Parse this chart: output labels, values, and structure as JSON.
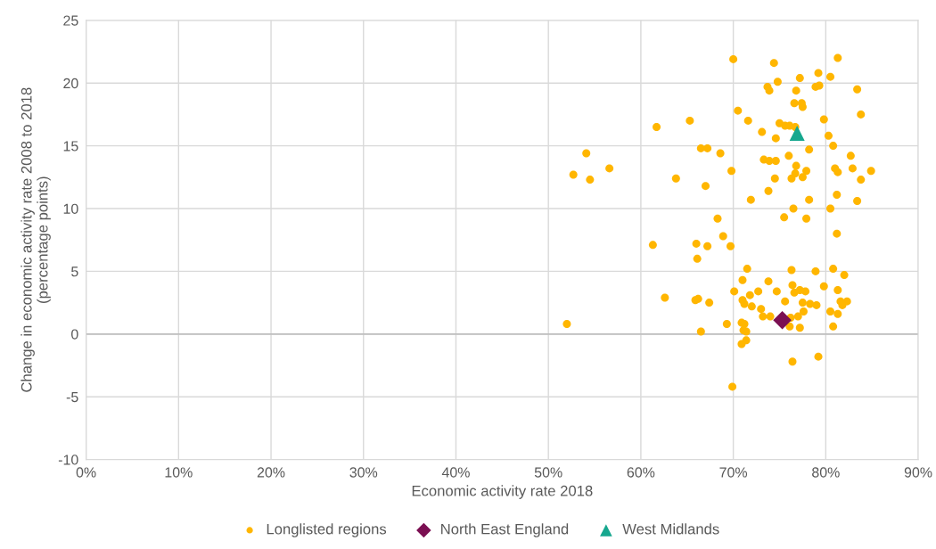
{
  "chart_data": {
    "type": "scatter",
    "xlabel": "Economic activity rate 2018",
    "ylabel": "Change in economic activity rate 2008 to 2018\n(percentage points)",
    "xlim": [
      0,
      90
    ],
    "xticks": [
      {
        "value": 0,
        "label": "0%"
      },
      {
        "value": 10,
        "label": "10%"
      },
      {
        "value": 20,
        "label": "20%"
      },
      {
        "value": 30,
        "label": "30%"
      },
      {
        "value": 40,
        "label": "40%"
      },
      {
        "value": 50,
        "label": "50%"
      },
      {
        "value": 60,
        "label": "60%"
      },
      {
        "value": 70,
        "label": "70%"
      },
      {
        "value": 80,
        "label": "80%"
      },
      {
        "value": 90,
        "label": "90%"
      }
    ],
    "ylim": [
      -10,
      25
    ],
    "yticks": [
      -10,
      -5,
      0,
      5,
      10,
      15,
      20,
      25
    ],
    "grid": true,
    "legend": "bottom",
    "ref_lines": [
      {
        "axis": "y",
        "value": 0,
        "color": "#bfbfbf"
      }
    ],
    "series": [
      {
        "name": "Longlisted regions",
        "color": "#ffb600",
        "marker": "circle",
        "x": [
          70.0,
          74.4,
          81.3,
          77.2,
          79.2,
          80.5,
          74.8,
          78.9,
          79.3,
          73.7,
          73.9,
          76.8,
          83.4,
          76.6,
          77.4,
          77.5,
          70.5,
          71.6,
          65.3,
          75.0,
          76.1,
          79.8,
          83.8,
          61.7,
          73.1,
          75.6,
          74.6,
          76.7,
          80.3,
          80.8,
          54.1,
          66.5,
          67.2,
          68.6,
          76.0,
          78.2,
          73.3,
          73.9,
          74.6,
          76.8,
          76.7,
          77.5,
          77.9,
          81.0,
          81.3,
          82.7,
          82.9,
          84.9,
          83.8,
          52.7,
          54.5,
          56.6,
          69.8,
          76.3,
          63.8,
          67.0,
          73.8,
          74.5,
          71.9,
          78.2,
          81.2,
          76.5,
          80.5,
          83.4,
          75.5,
          77.9,
          68.3,
          68.9,
          61.3,
          66.0,
          67.2,
          69.7,
          81.2,
          66.1,
          71.5,
          76.3,
          78.9,
          80.8,
          82.0,
          71.0,
          73.8,
          76.4,
          77.2,
          77.8,
          79.8,
          81.3,
          70.1,
          72.7,
          74.7,
          71.8,
          71.0,
          71.2,
          72.0,
          73.0,
          75.6,
          76.6,
          77.5,
          78.3,
          79.0,
          80.5,
          81.6,
          82.3,
          81.8,
          62.6,
          65.9,
          66.2,
          67.4,
          73.2,
          74.0,
          76.2,
          77.0,
          77.6,
          81.3,
          70.9,
          71.2,
          69.3,
          76.1,
          77.2,
          80.8,
          71.1,
          71.4,
          66.5,
          52.0,
          71.4,
          70.9,
          76.4,
          79.2,
          69.9
        ],
        "values": [
          21.9,
          21.6,
          22.0,
          20.4,
          20.8,
          20.5,
          20.1,
          19.7,
          19.8,
          19.7,
          19.4,
          19.4,
          19.5,
          18.4,
          18.4,
          18.1,
          17.8,
          17.0,
          17.0,
          16.8,
          16.6,
          17.1,
          17.5,
          16.5,
          16.1,
          16.6,
          15.6,
          16.5,
          15.8,
          15.0,
          14.4,
          14.8,
          14.8,
          14.4,
          14.2,
          14.7,
          13.9,
          13.8,
          13.8,
          13.4,
          12.8,
          12.5,
          13.0,
          13.2,
          12.9,
          14.2,
          13.2,
          13.0,
          12.3,
          12.7,
          12.3,
          13.2,
          13.0,
          12.4,
          12.4,
          11.8,
          11.4,
          12.4,
          10.7,
          10.7,
          11.1,
          10.0,
          10.0,
          10.6,
          9.3,
          9.2,
          9.2,
          7.8,
          7.1,
          7.2,
          7.0,
          7.0,
          8.0,
          6.0,
          5.2,
          5.1,
          5.0,
          5.2,
          4.7,
          4.3,
          4.2,
          3.9,
          3.5,
          3.4,
          3.8,
          3.5,
          3.4,
          3.4,
          3.4,
          3.1,
          2.7,
          2.4,
          2.2,
          2.0,
          2.6,
          3.3,
          2.5,
          2.4,
          2.3,
          1.8,
          2.6,
          2.6,
          2.3,
          2.9,
          2.7,
          2.8,
          2.5,
          1.4,
          1.4,
          1.3,
          1.4,
          1.8,
          1.6,
          0.9,
          0.8,
          0.8,
          0.6,
          0.5,
          0.6,
          0.3,
          0.2,
          0.2,
          0.8,
          -0.5,
          -0.8,
          -2.2,
          -1.8,
          -4.2
        ]
      },
      {
        "name": "North East England",
        "color": "#7b0f52",
        "marker": "diamond",
        "x": [
          75.3
        ],
        "values": [
          1.1
        ]
      },
      {
        "name": "West Midlands",
        "color": "#16a78e",
        "marker": "triangle",
        "x": [
          76.9
        ],
        "values": [
          16.0
        ]
      }
    ]
  }
}
